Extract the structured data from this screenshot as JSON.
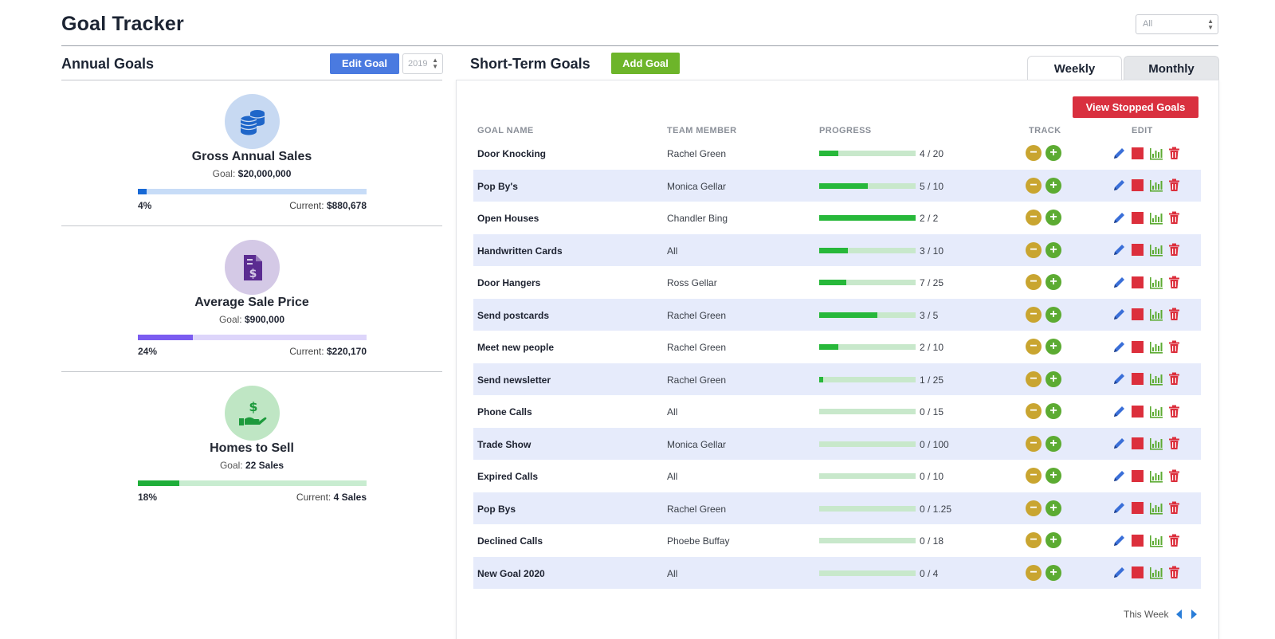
{
  "page": {
    "title": "Goal Tracker",
    "filter_value": "All"
  },
  "annual": {
    "title": "Annual Goals",
    "edit_label": "Edit Goal",
    "year": "2019",
    "goals": [
      {
        "name": "Gross Annual Sales",
        "goal_label": "Goal:",
        "goal_value": "$20,000,000",
        "pct_label": "4%",
        "progress": 0.04,
        "current_label": "Current:",
        "current_value": "$880,678",
        "icon": "coins-icon",
        "circle_color": "#c7d9f2",
        "icon_color": "#1f66c9",
        "track_color": "#c7dcf7",
        "fill_color": "#1769d6"
      },
      {
        "name": "Average Sale Price",
        "goal_label": "Goal:",
        "goal_value": "$900,000",
        "pct_label": "24%",
        "progress": 0.24,
        "current_label": "Current:",
        "current_value": "$220,170",
        "icon": "invoice-dollar-icon",
        "circle_color": "#d4c9e6",
        "icon_color": "#5b2c91",
        "track_color": "#ddd5fa",
        "fill_color": "#7b5cf0"
      },
      {
        "name": "Homes to Sell",
        "goal_label": "Goal:",
        "goal_value": "22 Sales",
        "pct_label": "18%",
        "progress": 0.18,
        "current_label": "Current:",
        "current_value": "4 Sales",
        "icon": "hand-dollar-icon",
        "circle_color": "#bfe6c4",
        "icon_color": "#1d9a3c",
        "track_color": "#c8ecd0",
        "fill_color": "#1fae3a"
      }
    ]
  },
  "short_term": {
    "title": "Short-Term Goals",
    "add_label": "Add Goal",
    "tabs": [
      "Weekly",
      "Monthly"
    ],
    "active_tab": "Weekly",
    "view_stopped_label": "View Stopped Goals",
    "columns": [
      "GOAL NAME",
      "TEAM MEMBER",
      "PROGRESS",
      "TRACK",
      "EDIT"
    ],
    "rows": [
      {
        "name": "Door Knocking",
        "member": "Rachel Green",
        "progress_text": "4 / 20",
        "progress": 0.2
      },
      {
        "name": "Pop By's",
        "member": "Monica Gellar",
        "progress_text": "5 / 10",
        "progress": 0.5
      },
      {
        "name": "Open Houses",
        "member": "Chandler Bing",
        "progress_text": "2 / 2",
        "progress": 1.0
      },
      {
        "name": "Handwritten Cards",
        "member": "All",
        "progress_text": "3 / 10",
        "progress": 0.3
      },
      {
        "name": "Door Hangers",
        "member": "Ross Gellar",
        "progress_text": "7 / 25",
        "progress": 0.28
      },
      {
        "name": "Send postcards",
        "member": "Rachel Green",
        "progress_text": "3 / 5",
        "progress": 0.6
      },
      {
        "name": "Meet new people",
        "member": "Rachel Green",
        "progress_text": "2 / 10",
        "progress": 0.2
      },
      {
        "name": "Send newsletter",
        "member": "Rachel Green",
        "progress_text": "1 / 25",
        "progress": 0.04
      },
      {
        "name": "Phone Calls",
        "member": "All",
        "progress_text": "0 / 15",
        "progress": 0
      },
      {
        "name": "Trade Show",
        "member": "Monica Gellar",
        "progress_text": "0 / 100",
        "progress": 0
      },
      {
        "name": "Expired Calls",
        "member": "All",
        "progress_text": "0 / 10",
        "progress": 0
      },
      {
        "name": "Pop Bys",
        "member": "Rachel Green",
        "progress_text": "0 / 1.25",
        "progress": 0
      },
      {
        "name": "Declined Calls",
        "member": "Phoebe Buffay",
        "progress_text": "0 / 18",
        "progress": 0
      },
      {
        "name": "New Goal 2020",
        "member": "All",
        "progress_text": "0 / 4",
        "progress": 0
      }
    ],
    "pager_label": "This Week"
  }
}
